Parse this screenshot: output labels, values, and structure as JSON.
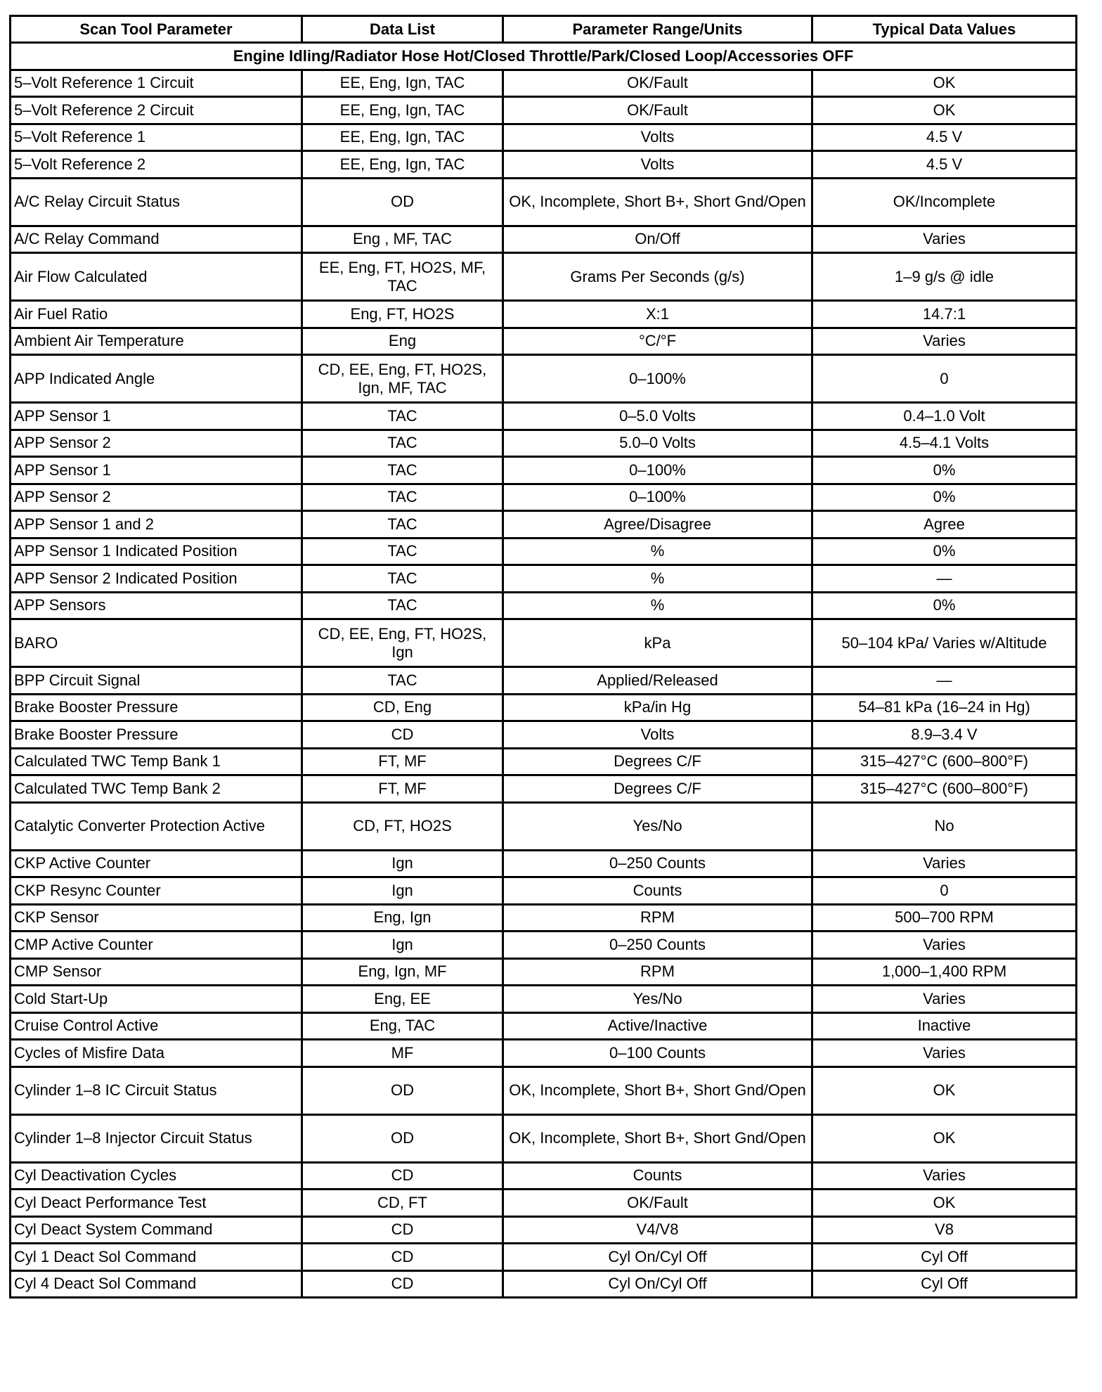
{
  "headers": [
    "Scan Tool Parameter",
    "Data List",
    "Parameter Range/Units",
    "Typical Data Values"
  ],
  "section": "Engine Idling/Radiator Hose Hot/Closed Throttle/Park/Closed Loop/Accessories OFF",
  "rows": [
    [
      "5–Volt Reference 1 Circuit",
      "EE, Eng, Ign, TAC",
      "OK/Fault",
      "OK"
    ],
    [
      "5–Volt Reference 2 Circuit",
      "EE, Eng, Ign, TAC",
      "OK/Fault",
      "OK"
    ],
    [
      "5–Volt Reference 1",
      "EE, Eng, Ign, TAC",
      "Volts",
      "4.5 V"
    ],
    [
      "5–Volt Reference 2",
      "EE, Eng, Ign, TAC",
      "Volts",
      "4.5 V"
    ],
    [
      "A/C Relay Circuit Status",
      "OD",
      "OK, Incomplete, Short B+, Short Gnd/Open",
      "OK/Incomplete"
    ],
    [
      "A/C Relay Command",
      "Eng , MF, TAC",
      "On/Off",
      "Varies"
    ],
    [
      "Air Flow Calculated",
      "EE, Eng, FT, HO2S, MF, TAC",
      "Grams Per Seconds (g/s)",
      "1–9 g/s @ idle"
    ],
    [
      "Air Fuel Ratio",
      "Eng, FT, HO2S",
      "X:1",
      "14.7:1"
    ],
    [
      "Ambient Air Temperature",
      "Eng",
      "°C/°F",
      "Varies"
    ],
    [
      "APP Indicated Angle",
      "CD, EE, Eng, FT, HO2S, Ign, MF, TAC",
      "0–100%",
      "0"
    ],
    [
      "APP Sensor 1",
      "TAC",
      "0–5.0 Volts",
      "0.4–1.0 Volt"
    ],
    [
      "APP Sensor 2",
      "TAC",
      "5.0–0 Volts",
      "4.5–4.1 Volts"
    ],
    [
      "APP Sensor 1",
      "TAC",
      "0–100%",
      "0%"
    ],
    [
      "APP Sensor 2",
      "TAC",
      "0–100%",
      "0%"
    ],
    [
      "APP Sensor 1 and 2",
      "TAC",
      "Agree/Disagree",
      "Agree"
    ],
    [
      "APP Sensor 1 Indicated Position",
      "TAC",
      "%",
      "0%"
    ],
    [
      "APP Sensor 2 Indicated Position",
      "TAC",
      "%",
      "—"
    ],
    [
      "APP Sensors",
      "TAC",
      "%",
      "0%"
    ],
    [
      "BARO",
      "CD, EE, Eng, FT, HO2S, Ign",
      "kPa",
      "50–104 kPa/ Varies w/Altitude"
    ],
    [
      "BPP Circuit Signal",
      "TAC",
      "Applied/Released",
      "—"
    ],
    [
      "Brake Booster Pressure",
      "CD, Eng",
      "kPa/in Hg",
      "54–81 kPa (16–24 in Hg)"
    ],
    [
      "Brake Booster Pressure",
      "CD",
      "Volts",
      "8.9–3.4 V"
    ],
    [
      "Calculated TWC Temp Bank 1",
      "FT, MF",
      "Degrees C/F",
      "315–427°C (600–800°F)"
    ],
    [
      "Calculated TWC Temp Bank 2",
      "FT, MF",
      "Degrees C/F",
      "315–427°C (600–800°F)"
    ],
    [
      "Catalytic Converter Protection Active",
      "CD, FT, HO2S",
      "Yes/No",
      "No"
    ],
    [
      "CKP Active Counter",
      "Ign",
      "0–250 Counts",
      "Varies"
    ],
    [
      "CKP Resync Counter",
      "Ign",
      "Counts",
      "0"
    ],
    [
      "CKP Sensor",
      "Eng, Ign",
      "RPM",
      "500–700 RPM"
    ],
    [
      "CMP Active Counter",
      "Ign",
      "0–250 Counts",
      "Varies"
    ],
    [
      "CMP Sensor",
      "Eng, Ign, MF",
      "RPM",
      "1,000–1,400 RPM"
    ],
    [
      "Cold Start-Up",
      "Eng, EE",
      "Yes/No",
      "Varies"
    ],
    [
      "Cruise Control Active",
      "Eng, TAC",
      "Active/Inactive",
      "Inactive"
    ],
    [
      "Cycles of Misfire Data",
      "MF",
      "0–100 Counts",
      "Varies"
    ],
    [
      "Cylinder 1–8 IC Circuit Status",
      "OD",
      "OK, Incomplete, Short B+, Short Gnd/Open",
      "OK"
    ],
    [
      "Cylinder 1–8 Injector Circuit Status",
      "OD",
      "OK, Incomplete, Short B+, Short Gnd/Open",
      "OK"
    ],
    [
      "Cyl Deactivation Cycles",
      "CD",
      "Counts",
      "Varies"
    ],
    [
      "Cyl Deact Performance Test",
      "CD, FT",
      "OK/Fault",
      "OK"
    ],
    [
      "Cyl Deact System Command",
      "CD",
      "V4/V8",
      "V8"
    ],
    [
      "Cyl 1 Deact Sol Command",
      "CD",
      "Cyl On/Cyl Off",
      "Cyl Off"
    ],
    [
      "Cyl 4 Deact Sol Command",
      "CD",
      "Cyl On/Cyl Off",
      "Cyl Off"
    ]
  ]
}
